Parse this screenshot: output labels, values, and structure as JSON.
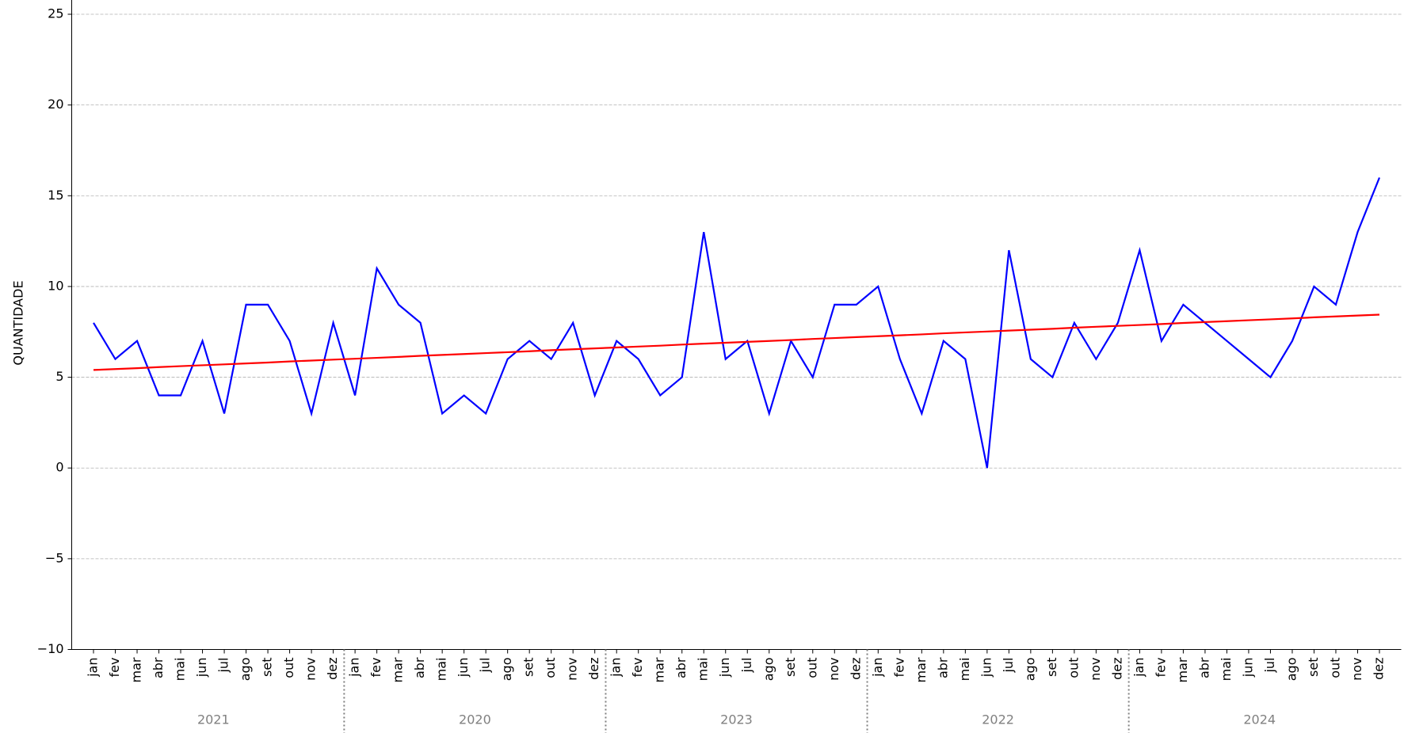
{
  "chart_data": {
    "type": "line",
    "ylabel": "QUANTIDADE",
    "categories": [
      "jan",
      "fev",
      "mar",
      "abr",
      "mai",
      "jun",
      "jul",
      "ago",
      "set",
      "out",
      "nov",
      "dez",
      "jan",
      "fev",
      "mar",
      "abr",
      "mai",
      "jun",
      "jul",
      "ago",
      "set",
      "out",
      "nov",
      "dez",
      "jan",
      "fev",
      "mar",
      "abr",
      "mai",
      "jun",
      "jul",
      "ago",
      "set",
      "out",
      "nov",
      "dez",
      "jan",
      "fev",
      "mar",
      "abr",
      "mai",
      "jun",
      "jul",
      "ago",
      "set",
      "out",
      "nov",
      "dez",
      "jan",
      "fev",
      "mar",
      "abr",
      "mai",
      "jun",
      "jul",
      "ago",
      "set",
      "out",
      "nov",
      "dez"
    ],
    "group_labels": [
      "2021",
      "2020",
      "2023",
      "2022",
      "2024"
    ],
    "series": [
      {
        "color": "#0000ff",
        "values": [
          8,
          6,
          7,
          4,
          4,
          7,
          3,
          9,
          9,
          7,
          3,
          8,
          4,
          11,
          9,
          8,
          3,
          4,
          3,
          6,
          7,
          6,
          8,
          4,
          7,
          6,
          4,
          5,
          13,
          6,
          7,
          3,
          7,
          5,
          9,
          9,
          10,
          6,
          3,
          7,
          6,
          0,
          12,
          6,
          5,
          8,
          6,
          8,
          12,
          7,
          9,
          8,
          7,
          6,
          5,
          7,
          10,
          9,
          13,
          16
        ]
      },
      {
        "color": "#ff0000",
        "values": [
          5.4,
          5.45,
          5.5,
          5.56,
          5.61,
          5.66,
          5.71,
          5.76,
          5.81,
          5.87,
          5.92,
          5.97,
          6.02,
          6.07,
          6.12,
          6.18,
          6.23,
          6.28,
          6.33,
          6.38,
          6.43,
          6.49,
          6.54,
          6.59,
          6.64,
          6.69,
          6.74,
          6.8,
          6.85,
          6.9,
          6.95,
          7.0,
          7.05,
          7.11,
          7.16,
          7.21,
          7.26,
          7.31,
          7.36,
          7.42,
          7.47,
          7.52,
          7.57,
          7.62,
          7.67,
          7.73,
          7.78,
          7.83,
          7.88,
          7.93,
          7.99,
          8.04,
          8.09,
          8.14,
          8.19,
          8.24,
          8.3,
          8.35,
          8.4,
          8.45
        ]
      }
    ],
    "ylim": [
      -10,
      25
    ],
    "yticks": [
      {
        "value": -10,
        "label": "−10"
      },
      {
        "value": -5,
        "label": "−5"
      },
      0,
      5,
      10,
      15,
      20,
      25
    ],
    "grid": true
  }
}
